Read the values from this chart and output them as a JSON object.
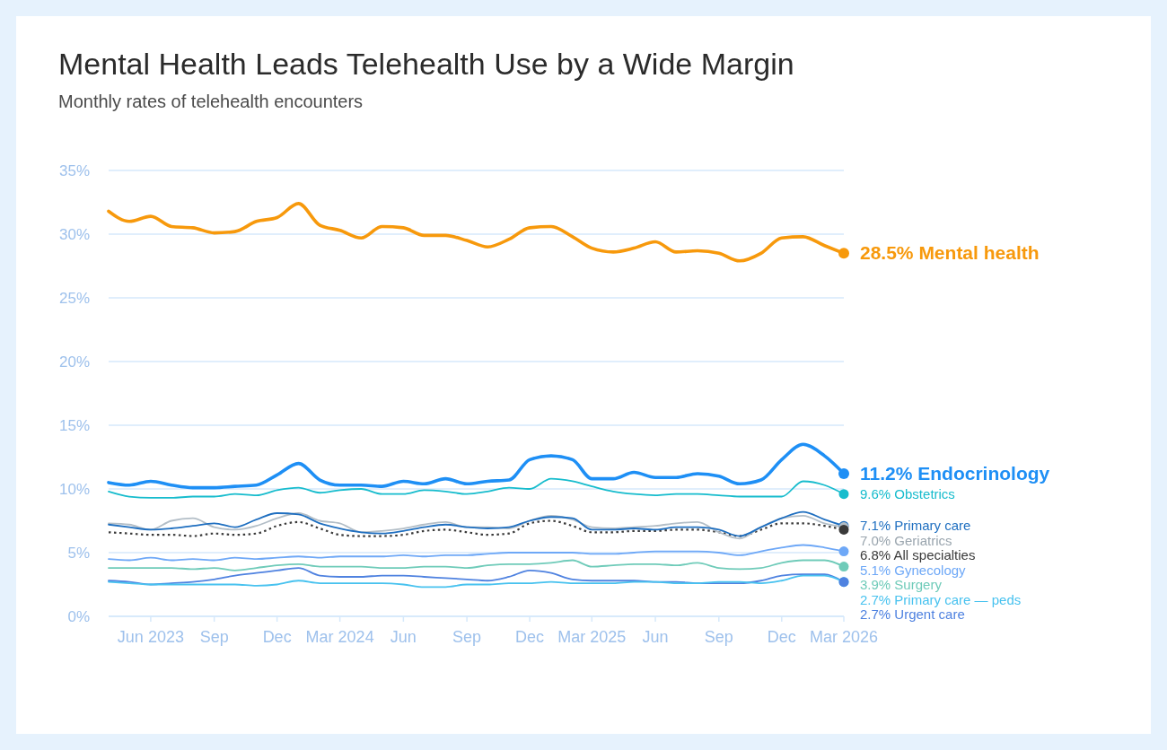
{
  "chart_data": {
    "type": "line",
    "title": "Mental Health Leads Telehealth Use by a Wide Margin",
    "subtitle": "Monthly rates of telehealth encounters",
    "x": [
      "2023-04",
      "2023-05",
      "2023-06",
      "2023-07",
      "2023-08",
      "2023-09",
      "2023-10",
      "2023-11",
      "2023-12",
      "2024-01",
      "2024-02",
      "2024-03",
      "2024-04",
      "2024-05",
      "2024-06",
      "2024-07",
      "2024-08",
      "2024-09",
      "2024-10",
      "2024-11",
      "2024-12",
      "2025-01",
      "2025-02",
      "2025-03",
      "2025-04",
      "2025-05",
      "2025-06",
      "2025-07",
      "2025-08",
      "2025-09",
      "2025-10",
      "2025-11",
      "2025-12",
      "2026-01",
      "2026-02",
      "2026-03"
    ],
    "xlim": [
      "2023-04",
      "2026-03"
    ],
    "xticks": [
      {
        "value": "2023-06",
        "label": "Jun 2023"
      },
      {
        "value": "2023-09",
        "label": "Sep"
      },
      {
        "value": "2023-12",
        "label": "Dec"
      },
      {
        "value": "2024-03",
        "label": "Mar 2024"
      },
      {
        "value": "2024-06",
        "label": "Jun"
      },
      {
        "value": "2024-09",
        "label": "Sep"
      },
      {
        "value": "2024-12",
        "label": "Dec"
      },
      {
        "value": "2025-03",
        "label": "Mar 2025"
      },
      {
        "value": "2025-06",
        "label": "Jun"
      },
      {
        "value": "2025-09",
        "label": "Sep"
      },
      {
        "value": "2025-12",
        "label": "Dec"
      },
      {
        "value": "2026-03",
        "label": "Mar 2026"
      }
    ],
    "ylim": [
      0,
      35
    ],
    "yticks": [
      {
        "value": 0,
        "label": "0%"
      },
      {
        "value": 5,
        "label": "5%"
      },
      {
        "value": 10,
        "label": "10%"
      },
      {
        "value": 15,
        "label": "15%"
      },
      {
        "value": 20,
        "label": "20%"
      },
      {
        "value": 25,
        "label": "25%"
      },
      {
        "value": 30,
        "label": "30%"
      },
      {
        "value": 35,
        "label": "35%"
      }
    ],
    "grid": "y",
    "series": [
      {
        "name": "Mental health",
        "color": "#f7990c",
        "values": [
          31.8,
          31.0,
          31.4,
          30.6,
          30.5,
          30.1,
          30.2,
          31.0,
          31.3,
          32.4,
          30.7,
          30.3,
          29.7,
          30.6,
          30.5,
          29.9,
          29.9,
          29.5,
          29.0,
          29.6,
          30.5,
          30.6,
          29.8,
          28.9,
          28.6,
          28.9,
          29.4,
          28.6,
          28.7,
          28.5,
          27.9,
          28.5,
          29.7,
          29.8,
          29.1,
          28.5
        ],
        "value_labels": [
          null,
          null,
          null,
          null,
          null,
          null,
          null,
          null,
          null,
          null,
          null,
          null,
          null,
          null,
          null,
          null,
          null,
          null,
          null,
          null,
          null,
          null,
          null,
          null,
          null,
          null,
          null,
          null,
          null,
          null,
          null,
          null,
          null,
          null,
          null,
          "28.5%"
        ]
      },
      {
        "name": "Endocrinology",
        "color": "#1e8ff5",
        "values": [
          10.5,
          10.3,
          10.6,
          10.3,
          10.1,
          10.1,
          10.2,
          10.3,
          11.1,
          12.0,
          10.7,
          10.3,
          10.3,
          10.2,
          10.6,
          10.4,
          10.8,
          10.4,
          10.6,
          10.7,
          12.3,
          12.6,
          12.3,
          10.8,
          10.8,
          11.3,
          10.9,
          10.9,
          11.2,
          11.0,
          10.4,
          10.7,
          12.3,
          13.5,
          12.6,
          11.2
        ],
        "value_labels": [
          null,
          null,
          null,
          null,
          null,
          null,
          null,
          null,
          null,
          null,
          null,
          null,
          null,
          null,
          null,
          null,
          null,
          null,
          null,
          null,
          null,
          null,
          null,
          null,
          null,
          null,
          null,
          null,
          null,
          null,
          null,
          null,
          null,
          null,
          null,
          "11.2%"
        ]
      },
      {
        "name": "Obstetrics",
        "color": "#17bccd",
        "values": [
          9.8,
          9.4,
          9.3,
          9.3,
          9.4,
          9.4,
          9.6,
          9.5,
          9.9,
          10.1,
          9.7,
          9.9,
          10.0,
          9.6,
          9.6,
          9.9,
          9.8,
          9.6,
          9.8,
          10.1,
          10.0,
          10.8,
          10.6,
          10.2,
          9.8,
          9.6,
          9.5,
          9.6,
          9.6,
          9.5,
          9.4,
          9.4,
          9.4,
          10.6,
          10.3,
          9.6
        ],
        "value_labels": [
          null,
          null,
          null,
          null,
          null,
          null,
          null,
          null,
          null,
          null,
          null,
          null,
          null,
          null,
          null,
          null,
          null,
          null,
          null,
          null,
          null,
          null,
          null,
          null,
          null,
          null,
          null,
          null,
          null,
          null,
          null,
          null,
          null,
          null,
          null,
          "9.6%"
        ]
      },
      {
        "name": "Primary care",
        "color": "#1f6fc0",
        "values": [
          7.2,
          7.0,
          6.8,
          6.9,
          7.1,
          7.3,
          7.0,
          7.6,
          8.1,
          8.0,
          7.3,
          6.9,
          6.6,
          6.5,
          6.7,
          7.0,
          7.2,
          7.0,
          6.9,
          7.0,
          7.5,
          7.8,
          7.7,
          6.8,
          6.8,
          6.9,
          6.8,
          7.0,
          7.0,
          6.8,
          6.3,
          7.0,
          7.7,
          8.2,
          7.6,
          7.1
        ],
        "value_labels": [
          null,
          null,
          null,
          null,
          null,
          null,
          null,
          null,
          null,
          null,
          null,
          null,
          null,
          null,
          null,
          null,
          null,
          null,
          null,
          null,
          null,
          null,
          null,
          null,
          null,
          null,
          null,
          null,
          null,
          null,
          null,
          null,
          null,
          null,
          null,
          "7.1%"
        ]
      },
      {
        "name": "Geriatrics",
        "color": "#b3bec7",
        "values": [
          7.3,
          7.2,
          6.8,
          7.5,
          7.7,
          7.0,
          6.8,
          7.1,
          7.7,
          8.1,
          7.5,
          7.3,
          6.6,
          6.7,
          6.9,
          7.2,
          7.4,
          7.0,
          7.0,
          6.9,
          7.5,
          7.9,
          7.6,
          7.0,
          6.9,
          7.0,
          7.1,
          7.3,
          7.4,
          6.6,
          6.1,
          7.0,
          7.7,
          7.9,
          7.3,
          7.0
        ],
        "value_labels": [
          null,
          null,
          null,
          null,
          null,
          null,
          null,
          null,
          null,
          null,
          null,
          null,
          null,
          null,
          null,
          null,
          null,
          null,
          null,
          null,
          null,
          null,
          null,
          null,
          null,
          null,
          null,
          null,
          null,
          null,
          null,
          null,
          null,
          null,
          null,
          "7.0%"
        ]
      },
      {
        "name": "All specialties",
        "color": "#3a3a3a",
        "line_style": "dotted",
        "values": [
          6.6,
          6.5,
          6.4,
          6.4,
          6.3,
          6.5,
          6.4,
          6.5,
          7.1,
          7.4,
          6.9,
          6.4,
          6.3,
          6.3,
          6.4,
          6.7,
          6.8,
          6.6,
          6.4,
          6.5,
          7.3,
          7.5,
          7.1,
          6.6,
          6.6,
          6.7,
          6.7,
          6.8,
          6.8,
          6.6,
          6.3,
          6.8,
          7.3,
          7.3,
          7.1,
          6.8
        ],
        "value_labels": [
          null,
          null,
          null,
          null,
          null,
          null,
          null,
          null,
          null,
          null,
          null,
          null,
          null,
          null,
          null,
          null,
          null,
          null,
          null,
          null,
          null,
          null,
          null,
          null,
          null,
          null,
          null,
          null,
          null,
          null,
          null,
          null,
          null,
          null,
          null,
          "6.8%"
        ]
      },
      {
        "name": "Gynecology",
        "color": "#6ea8f7",
        "values": [
          4.5,
          4.4,
          4.6,
          4.4,
          4.5,
          4.4,
          4.6,
          4.5,
          4.6,
          4.7,
          4.6,
          4.7,
          4.7,
          4.7,
          4.8,
          4.7,
          4.8,
          4.8,
          4.9,
          5.0,
          5.0,
          5.0,
          5.0,
          4.9,
          4.9,
          5.0,
          5.1,
          5.1,
          5.1,
          5.0,
          4.8,
          5.1,
          5.4,
          5.6,
          5.4,
          5.1
        ],
        "value_labels": [
          null,
          null,
          null,
          null,
          null,
          null,
          null,
          null,
          null,
          null,
          null,
          null,
          null,
          null,
          null,
          null,
          null,
          null,
          null,
          null,
          null,
          null,
          null,
          null,
          null,
          null,
          null,
          null,
          null,
          null,
          null,
          null,
          null,
          null,
          null,
          "5.1%"
        ]
      },
      {
        "name": "Surgery",
        "color": "#6fcbb9",
        "values": [
          3.8,
          3.8,
          3.8,
          3.8,
          3.7,
          3.8,
          3.6,
          3.8,
          4.0,
          4.1,
          3.9,
          3.9,
          3.9,
          3.8,
          3.8,
          3.9,
          3.9,
          3.8,
          4.0,
          4.1,
          4.1,
          4.2,
          4.4,
          3.9,
          4.0,
          4.1,
          4.1,
          4.0,
          4.2,
          3.8,
          3.7,
          3.8,
          4.2,
          4.4,
          4.4,
          3.9
        ],
        "value_labels": [
          null,
          null,
          null,
          null,
          null,
          null,
          null,
          null,
          null,
          null,
          null,
          null,
          null,
          null,
          null,
          null,
          null,
          null,
          null,
          null,
          null,
          null,
          null,
          null,
          null,
          null,
          null,
          null,
          null,
          null,
          null,
          null,
          null,
          null,
          null,
          "3.9%"
        ]
      },
      {
        "name": "Primary care — peds",
        "color": "#48c2ef",
        "values": [
          2.7,
          2.6,
          2.5,
          2.5,
          2.5,
          2.5,
          2.5,
          2.4,
          2.5,
          2.8,
          2.6,
          2.6,
          2.6,
          2.6,
          2.5,
          2.3,
          2.3,
          2.5,
          2.5,
          2.6,
          2.6,
          2.7,
          2.6,
          2.6,
          2.6,
          2.7,
          2.7,
          2.6,
          2.6,
          2.7,
          2.7,
          2.6,
          2.8,
          3.2,
          3.2,
          2.7
        ],
        "value_labels": [
          null,
          null,
          null,
          null,
          null,
          null,
          null,
          null,
          null,
          null,
          null,
          null,
          null,
          null,
          null,
          null,
          null,
          null,
          null,
          null,
          null,
          null,
          null,
          null,
          null,
          null,
          null,
          null,
          null,
          null,
          null,
          null,
          null,
          null,
          null,
          "2.7%"
        ]
      },
      {
        "name": "Urgent care",
        "color": "#4f82e0",
        "values": [
          2.8,
          2.7,
          2.5,
          2.6,
          2.7,
          2.9,
          3.2,
          3.4,
          3.6,
          3.8,
          3.2,
          3.1,
          3.1,
          3.2,
          3.2,
          3.1,
          3.0,
          2.9,
          2.8,
          3.1,
          3.6,
          3.4,
          2.9,
          2.8,
          2.8,
          2.8,
          2.7,
          2.7,
          2.6,
          2.6,
          2.6,
          2.8,
          3.2,
          3.3,
          3.3,
          2.7
        ],
        "value_labels": [
          null,
          null,
          null,
          null,
          null,
          null,
          null,
          null,
          null,
          null,
          null,
          null,
          null,
          null,
          null,
          null,
          null,
          null,
          null,
          null,
          null,
          null,
          null,
          null,
          null,
          null,
          null,
          null,
          null,
          null,
          null,
          null,
          null,
          null,
          null,
          "2.7%"
        ]
      }
    ]
  }
}
